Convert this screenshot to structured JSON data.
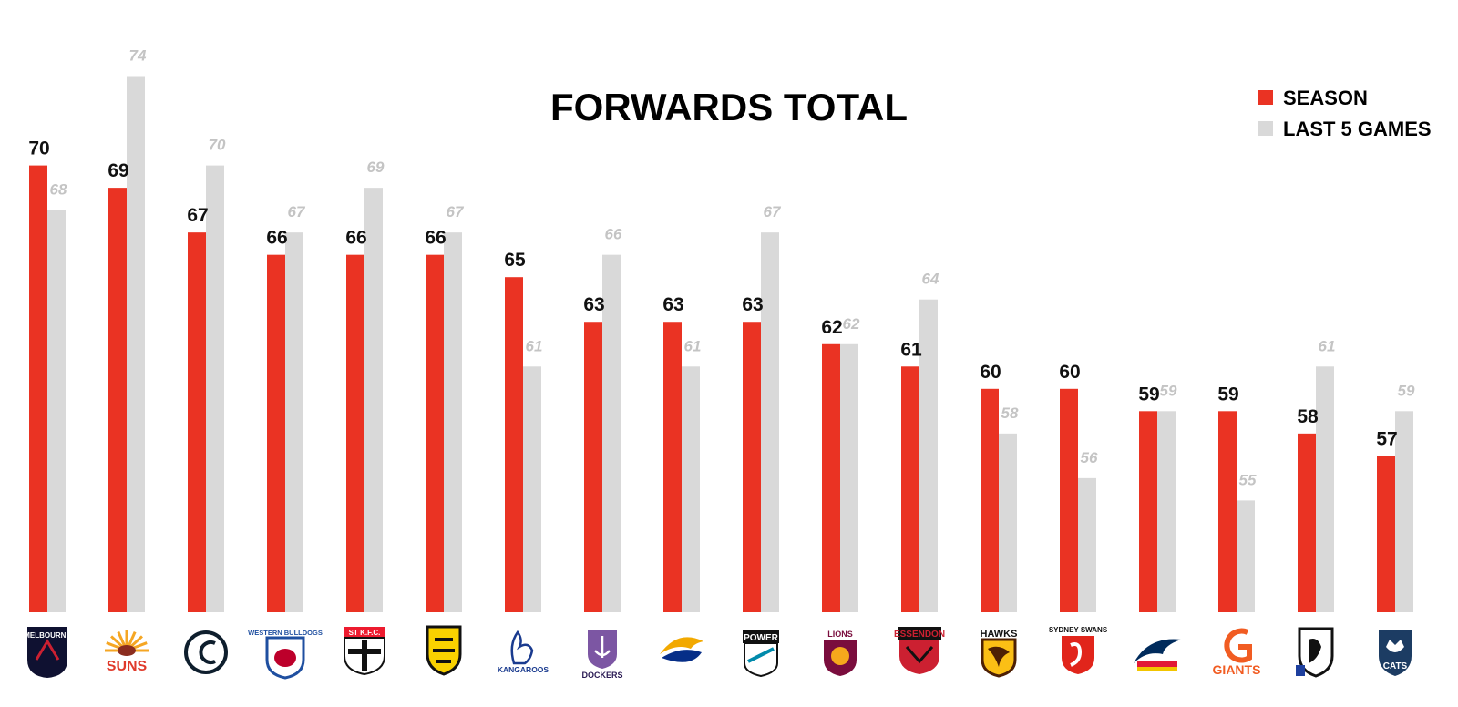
{
  "chart_data": {
    "type": "bar",
    "title": "FORWARDS TOTAL",
    "legend_position": "top-right",
    "grid": false,
    "xlabel": "",
    "ylabel": "",
    "ylim": [
      50,
      75
    ],
    "categories": [
      "MELBOURNE",
      "SUNS",
      "CARLTON",
      "WESTERN BULLDOGS",
      "ST K.F.C.",
      "RICHMOND",
      "KANGAROOS",
      "FREMANTLE DOCKERS",
      "WEST COAST",
      "POWER",
      "BRISBANE LIONS",
      "ESSENDON",
      "HAWKS",
      "SYDNEY SWANS",
      "ADELAIDE",
      "GIANTS",
      "COLLINGWOOD",
      "GEELONG CATS"
    ],
    "series": [
      {
        "name": "SEASON",
        "color": "#ea3323",
        "values": [
          70,
          69,
          67,
          66,
          66,
          66,
          65,
          63,
          63,
          63,
          62,
          61,
          60,
          60,
          59,
          59,
          58,
          57
        ]
      },
      {
        "name": "LAST 5 GAMES",
        "color": "#d9d9d9",
        "values": [
          68,
          74,
          70,
          67,
          69,
          67,
          61,
          66,
          61,
          67,
          62,
          64,
          58,
          56,
          59,
          55,
          61,
          59
        ]
      }
    ]
  },
  "logos": [
    {
      "text": "MELBOURNE",
      "primary": "#0f1131",
      "secondary": "#cc2031",
      "icon": "melbourne-demons-logo"
    },
    {
      "text": "SUNS",
      "primary": "#e03a2b",
      "secondary": "#f5a623",
      "icon": "gold-coast-suns-logo"
    },
    {
      "text": "",
      "primary": "#0e1e2d",
      "secondary": "#ffffff",
      "icon": "carlton-logo"
    },
    {
      "text": "WESTERN BULLDOGS",
      "primary": "#1f4fa0",
      "secondary": "#bd002b",
      "icon": "western-bulldogs-logo"
    },
    {
      "text": "ST K.F.C.",
      "primary": "#111111",
      "secondary": "#ed1b2f",
      "icon": "st-kilda-logo"
    },
    {
      "text": "",
      "primary": "#111111",
      "secondary": "#f9d100",
      "icon": "richmond-tigers-logo"
    },
    {
      "text": "KANGAROOS",
      "primary": "#1a3b8f",
      "secondary": "#ffffff",
      "icon": "north-melbourne-logo"
    },
    {
      "text": "DOCKERS",
      "primary": "#2a1a54",
      "secondary": "#7c56a3",
      "icon": "fremantle-dockers-logo"
    },
    {
      "text": "",
      "primary": "#062e88",
      "secondary": "#f2a900",
      "icon": "west-coast-eagles-logo"
    },
    {
      "text": "POWER",
      "primary": "#111111",
      "secondary": "#008aab",
      "icon": "port-adelaide-power-logo"
    },
    {
      "text": "LIONS",
      "primary": "#7a0d3d",
      "secondary": "#f6a81c",
      "icon": "brisbane-lions-logo"
    },
    {
      "text": "ESSENDON",
      "primary": "#cc2031",
      "secondary": "#111111",
      "icon": "essendon-logo"
    },
    {
      "text": "HAWKS",
      "primary": "#4d2004",
      "secondary": "#fbbf15",
      "icon": "hawthorn-hawks-logo"
    },
    {
      "text": "SYDNEY SWANS",
      "primary": "#e1251b",
      "secondary": "#ffffff",
      "icon": "sydney-swans-logo"
    },
    {
      "text": "",
      "primary": "#002b5c",
      "secondary": "#e21937",
      "icon": "adelaide-crows-logo"
    },
    {
      "text": "GIANTS",
      "primary": "#f15c22",
      "secondary": "#4a4a4a",
      "icon": "gws-giants-logo"
    },
    {
      "text": "",
      "primary": "#111111",
      "secondary": "#ffffff",
      "icon": "collingwood-magpies-logo"
    },
    {
      "text": "CATS",
      "primary": "#1c3c63",
      "secondary": "#ffffff",
      "icon": "geelong-cats-logo"
    }
  ]
}
